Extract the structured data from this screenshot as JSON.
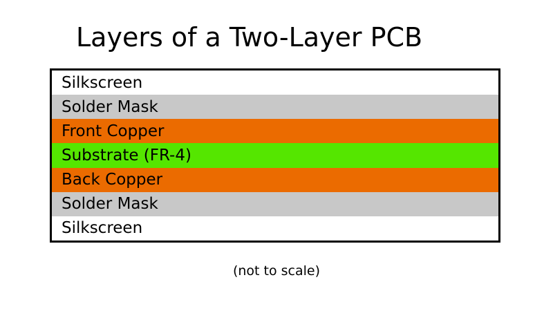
{
  "title": "Layers of a Two-Layer PCB",
  "layers": [
    {
      "label": "Silkscreen",
      "color": "#ffffff"
    },
    {
      "label": "Solder Mask",
      "color": "#c8c8c8"
    },
    {
      "label": "Front Copper",
      "color": "#eb6b00"
    },
    {
      "label": "Substrate (FR-4)",
      "color": "#55e600"
    },
    {
      "label": "Back Copper",
      "color": "#eb6b00"
    },
    {
      "label": "Solder Mask",
      "color": "#c8c8c8"
    },
    {
      "label": "Silkscreen",
      "color": "#ffffff"
    }
  ],
  "note": "(not to scale)"
}
